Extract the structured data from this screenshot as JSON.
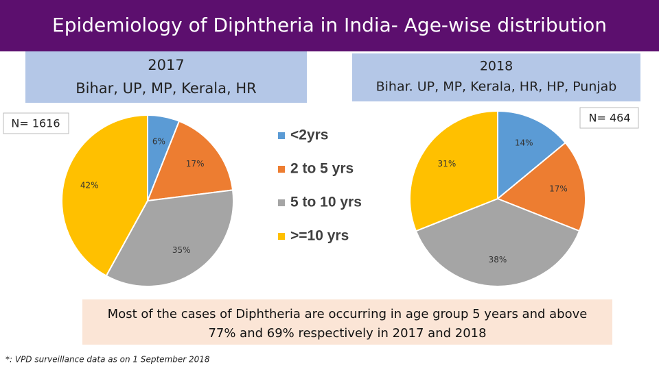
{
  "header": {
    "title": "Epidemiology of Diphtheria in India- Age-wise distribution"
  },
  "chart_data": [
    {
      "type": "pie",
      "title": "2017",
      "subtitle": "Bihar, UP, MP, Kerala, HR",
      "annotation": "N= 1616",
      "categories": [
        "<2yrs",
        "2 to 5 yrs",
        "5 to 10 yrs",
        ">=10 yrs"
      ],
      "values": [
        6,
        17,
        35,
        42
      ],
      "value_labels": [
        "6%",
        "17%",
        "35%",
        "42%"
      ],
      "colors": [
        "#5b9bd5",
        "#ed7d31",
        "#a5a5a5",
        "#ffc000"
      ],
      "legend": "center"
    },
    {
      "type": "pie",
      "title": "2018",
      "subtitle": "Bihar. UP, MP, Kerala, HR, HP, Punjab",
      "annotation": "N= 464",
      "categories": [
        "<2yrs",
        "2 to 5 yrs",
        "5 to 10 yrs",
        ">=10 yrs"
      ],
      "values": [
        14,
        17,
        38,
        31
      ],
      "value_labels": [
        "14%",
        "17%",
        "38%",
        "31%"
      ],
      "colors": [
        "#5b9bd5",
        "#ed7d31",
        "#a5a5a5",
        "#ffc000"
      ]
    }
  ],
  "conclusion": {
    "line1": "Most of the cases of Diphtheria are occurring in age group 5 years and above",
    "line2": "77% and 69% respectively in 2017 and 2018"
  },
  "footnote": "*: VPD surveillance data as on 1 September 2018"
}
